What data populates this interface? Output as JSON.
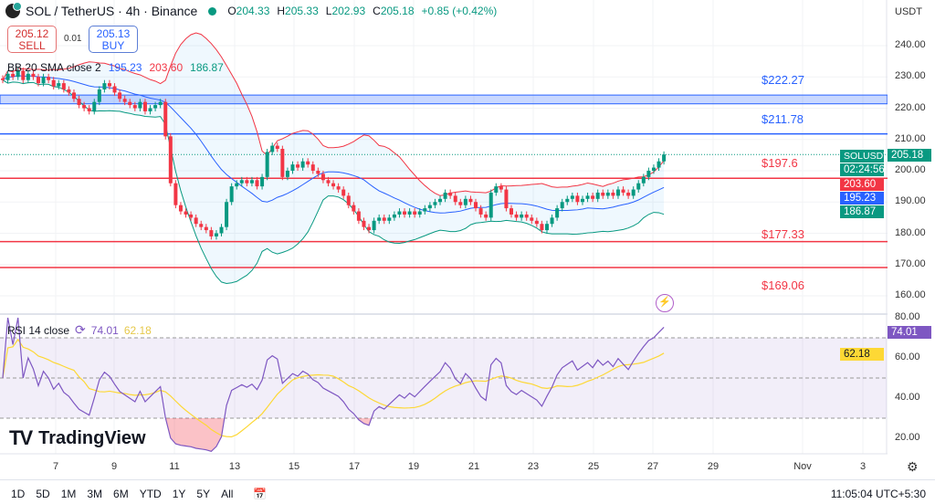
{
  "header": {
    "title": "SOL / TetherUS · 4h · Binance",
    "open_label": "O",
    "open": "204.33",
    "high_label": "H",
    "high": "205.33",
    "low_label": "L",
    "low": "202.93",
    "close_label": "C",
    "close": "205.18",
    "change": "+0.85 (+0.42%)"
  },
  "trade": {
    "sell_price": "205.12",
    "sell_label": "SELL",
    "spread": "0.01",
    "buy_price": "205.13",
    "buy_label": "BUY"
  },
  "bb_legend": {
    "name": "BB 20 SMA close 2",
    "basis": "195.23",
    "upper": "203.60",
    "lower": "186.87"
  },
  "rsi_legend": {
    "name": "RSI 14 close",
    "rsi": "74.01",
    "ma": "62.18"
  },
  "currency": "USDT",
  "symbol_tag": "SOLUSDT",
  "price_tags": {
    "last": "205.18",
    "countdown": "02:24:56",
    "upper": "203.60",
    "basis": "195.23",
    "lower": "186.87"
  },
  "rsi_tags": {
    "rsi": "74.01",
    "ma": "62.18"
  },
  "colors": {
    "up": "#089981",
    "down": "#f23645",
    "basis": "#2962ff",
    "upper": "#f23645",
    "lower": "#089981",
    "rsi": "#7e57c2",
    "rsi_ma": "#fdd835"
  },
  "brand": "TradingView",
  "toolbar": {
    "ranges": [
      "1D",
      "5D",
      "1M",
      "3M",
      "6M",
      "YTD",
      "1Y",
      "5Y",
      "All"
    ]
  },
  "time": "11:05:04 UTC+5:30",
  "chart_data": {
    "type": "candlestick",
    "timeframe": "4h",
    "x_ticks": [
      "7",
      "9",
      "11",
      "13",
      "15",
      "17",
      "19",
      "21",
      "23",
      "25",
      "27",
      "29",
      "Nov",
      "3"
    ],
    "y_ticks": [
      "240.00",
      "230.00",
      "220.00",
      "210.00",
      "200.00",
      "190.00",
      "180.00",
      "170.00",
      "160.00"
    ],
    "ylim": [
      157,
      244
    ],
    "rsi_ticks": [
      "80.00",
      "60.00",
      "40.00",
      "20.00"
    ],
    "rsi_lim": [
      14,
      84
    ],
    "rsi_bands": [
      70,
      50,
      30
    ],
    "closes": [
      229,
      231,
      230,
      232,
      229,
      231,
      230,
      228,
      230,
      229,
      227,
      228,
      226,
      225,
      223,
      221,
      220,
      219,
      222,
      226,
      228,
      227,
      225,
      223,
      222,
      221,
      220,
      222,
      219,
      220,
      221,
      222,
      211,
      196,
      189,
      187,
      186,
      185,
      183,
      182,
      181,
      179,
      180,
      182,
      190,
      195,
      196,
      197,
      196,
      197,
      195,
      198,
      206,
      208,
      207,
      198,
      200,
      202,
      201,
      203,
      202,
      200,
      199,
      197,
      196,
      195,
      194,
      192,
      189,
      187,
      184,
      182,
      181,
      184,
      185,
      184,
      185,
      186,
      187,
      186,
      187,
      186,
      187,
      188,
      189,
      190,
      191,
      193,
      192,
      190,
      189,
      191,
      190,
      188,
      186,
      185,
      193,
      195,
      194,
      188,
      186,
      185,
      186,
      185,
      184,
      183,
      181,
      183,
      185,
      188,
      190,
      191,
      192,
      190,
      191,
      192,
      191,
      193,
      192,
      193,
      192,
      194,
      193,
      192,
      194,
      196,
      198,
      200,
      201,
      203,
      205.18
    ],
    "levels": [
      {
        "label": "$222.27",
        "value": 222.27,
        "color": "#2962ff",
        "zone": [
          221.4,
          224.2
        ]
      },
      {
        "label": "$211.78",
        "value": 211.78,
        "color": "#2962ff"
      },
      {
        "label": "$197.6",
        "value": 197.6,
        "color": "#f23645"
      },
      {
        "label": "$177.33",
        "value": 177.33,
        "color": "#f23645"
      },
      {
        "label": "$169.06",
        "value": 169.06,
        "color": "#f23645"
      }
    ]
  }
}
